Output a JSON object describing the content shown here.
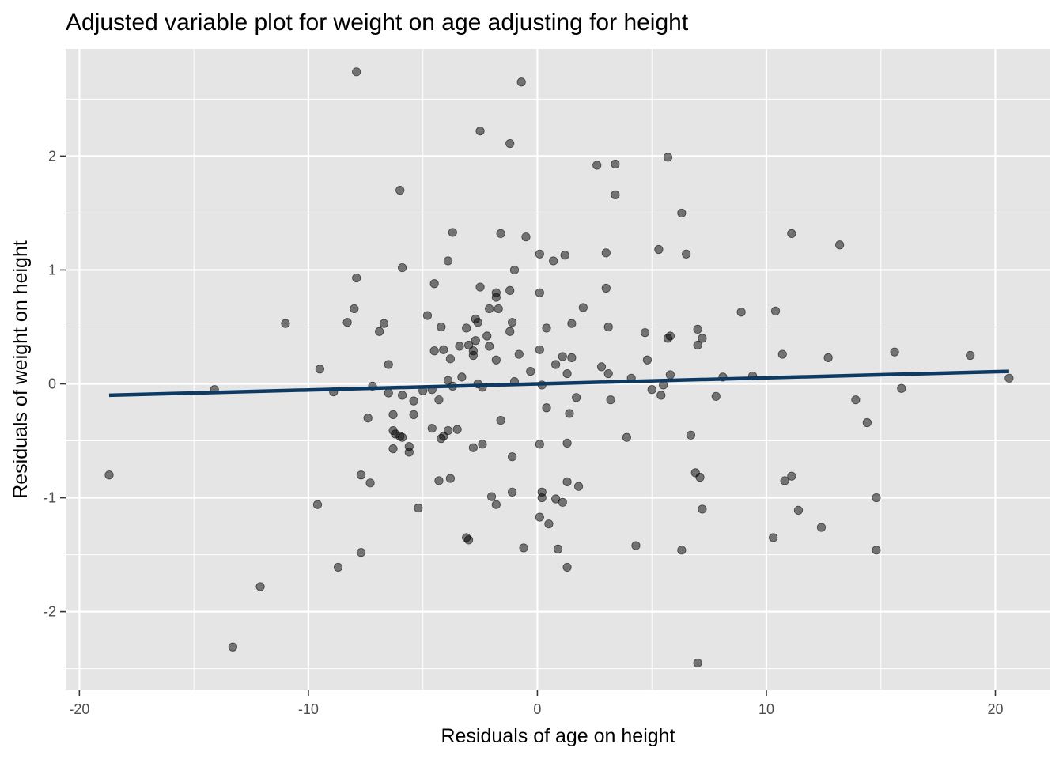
{
  "chart_data": {
    "type": "scatter",
    "title": "Adjusted variable plot for weight on age adjusting for height",
    "xlabel": "Residuals of age on height",
    "ylabel": "Residuals of weight on height",
    "xlim": [
      -20.6,
      22.4
    ],
    "ylim": [
      -2.69,
      2.94
    ],
    "x_ticks": [
      -20,
      -10,
      0,
      10,
      20
    ],
    "x_tick_labels": [
      "-20",
      "-10",
      "0",
      "10",
      "20"
    ],
    "y_ticks": [
      -2,
      -1,
      0,
      1,
      2
    ],
    "y_tick_labels": [
      "-2",
      "-1",
      "0",
      "1",
      "2"
    ],
    "grid": true,
    "colors": {
      "panel": "#e5e5e5",
      "grid": "#ffffff",
      "point": "#000000",
      "fit_line": "#0d3a63"
    },
    "fit_line": {
      "x": [
        -18.7,
        20.6
      ],
      "y": [
        -0.1,
        0.11
      ]
    },
    "points": [
      [
        -18.7,
        -0.8
      ],
      [
        -14.1,
        -0.05
      ],
      [
        -13.3,
        -2.31
      ],
      [
        -12.1,
        -1.78
      ],
      [
        -11.0,
        0.53
      ],
      [
        -9.6,
        -1.06
      ],
      [
        -9.5,
        0.13
      ],
      [
        -8.9,
        -0.07
      ],
      [
        -8.7,
        -1.61
      ],
      [
        -8.3,
        0.54
      ],
      [
        -8.0,
        0.66
      ],
      [
        -7.9,
        0.93
      ],
      [
        -7.9,
        2.74
      ],
      [
        -7.7,
        -0.8
      ],
      [
        -7.7,
        -1.48
      ],
      [
        -7.4,
        -0.3
      ],
      [
        -7.3,
        -0.87
      ],
      [
        -7.2,
        -0.02
      ],
      [
        -6.9,
        0.46
      ],
      [
        -6.7,
        0.53
      ],
      [
        -6.5,
        0.17
      ],
      [
        -6.5,
        -0.08
      ],
      [
        -6.3,
        -0.27
      ],
      [
        -6.3,
        -0.41
      ],
      [
        -6.3,
        -0.57
      ],
      [
        -6.2,
        -0.44
      ],
      [
        -6.0,
        -0.46
      ],
      [
        -6.0,
        1.7
      ],
      [
        -5.9,
        -0.1
      ],
      [
        -5.9,
        -0.47
      ],
      [
        -5.9,
        1.02
      ],
      [
        -5.6,
        -0.55
      ],
      [
        -5.6,
        -0.6
      ],
      [
        -5.4,
        -0.27
      ],
      [
        -5.4,
        -0.15
      ],
      [
        -5.2,
        -1.09
      ],
      [
        -5.0,
        -0.06
      ],
      [
        -4.8,
        0.6
      ],
      [
        -4.6,
        -0.05
      ],
      [
        -4.6,
        -0.39
      ],
      [
        -4.5,
        0.29
      ],
      [
        -4.5,
        0.88
      ],
      [
        -4.3,
        -0.85
      ],
      [
        -4.3,
        -0.14
      ],
      [
        -4.2,
        0.5
      ],
      [
        -4.2,
        -0.48
      ],
      [
        -4.1,
        0.3
      ],
      [
        -4.1,
        -0.46
      ],
      [
        -3.9,
        0.03
      ],
      [
        -3.9,
        1.08
      ],
      [
        -3.9,
        -0.41
      ],
      [
        -3.8,
        -0.83
      ],
      [
        -3.8,
        0.22
      ],
      [
        -3.7,
        1.33
      ],
      [
        -3.7,
        -0.02
      ],
      [
        -3.5,
        -0.4
      ],
      [
        -3.4,
        0.33
      ],
      [
        -3.3,
        0.06
      ],
      [
        -3.1,
        0.49
      ],
      [
        -3.1,
        -1.35
      ],
      [
        -3.0,
        -1.37
      ],
      [
        -3.0,
        0.34
      ],
      [
        -2.8,
        0.29
      ],
      [
        -2.8,
        0.25
      ],
      [
        -2.8,
        -0.56
      ],
      [
        -2.7,
        0.57
      ],
      [
        -2.7,
        0.38
      ],
      [
        -2.6,
        0.0
      ],
      [
        -2.6,
        0.54
      ],
      [
        -2.5,
        0.85
      ],
      [
        -2.5,
        2.22
      ],
      [
        -2.4,
        -0.53
      ],
      [
        -2.4,
        -0.03
      ],
      [
        -2.2,
        0.42
      ],
      [
        -2.1,
        0.33
      ],
      [
        -2.1,
        0.66
      ],
      [
        -2.0,
        -0.99
      ],
      [
        -1.8,
        0.8
      ],
      [
        -1.8,
        0.76
      ],
      [
        -1.8,
        -1.06
      ],
      [
        -1.8,
        0.21
      ],
      [
        -1.7,
        0.66
      ],
      [
        -1.6,
        -0.32
      ],
      [
        -1.6,
        1.32
      ],
      [
        -1.2,
        2.11
      ],
      [
        -1.2,
        0.82
      ],
      [
        -1.2,
        0.46
      ],
      [
        -1.1,
        -0.95
      ],
      [
        -1.1,
        0.54
      ],
      [
        -1.1,
        -0.64
      ],
      [
        -1.0,
        0.02
      ],
      [
        -1.0,
        1.0
      ],
      [
        -0.8,
        0.26
      ],
      [
        -0.7,
        2.65
      ],
      [
        -0.6,
        -1.44
      ],
      [
        -0.5,
        1.29
      ],
      [
        -0.3,
        0.11
      ],
      [
        0.1,
        -1.17
      ],
      [
        0.1,
        1.14
      ],
      [
        0.1,
        0.8
      ],
      [
        0.1,
        0.3
      ],
      [
        0.1,
        -0.53
      ],
      [
        0.2,
        -0.95
      ],
      [
        0.2,
        -1.0
      ],
      [
        0.2,
        -0.01
      ],
      [
        0.4,
        -0.21
      ],
      [
        0.4,
        0.49
      ],
      [
        0.5,
        -1.23
      ],
      [
        0.7,
        1.08
      ],
      [
        0.8,
        -1.01
      ],
      [
        0.8,
        0.17
      ],
      [
        0.9,
        -1.45
      ],
      [
        1.1,
        -1.04
      ],
      [
        1.1,
        0.24
      ],
      [
        1.2,
        1.13
      ],
      [
        1.3,
        0.09
      ],
      [
        1.3,
        -0.86
      ],
      [
        1.3,
        -0.52
      ],
      [
        1.3,
        -1.61
      ],
      [
        1.4,
        -0.26
      ],
      [
        1.5,
        0.53
      ],
      [
        1.5,
        0.23
      ],
      [
        1.7,
        -0.12
      ],
      [
        1.8,
        -0.9
      ],
      [
        2.0,
        0.67
      ],
      [
        2.6,
        1.92
      ],
      [
        2.8,
        0.15
      ],
      [
        3.0,
        0.84
      ],
      [
        3.0,
        1.15
      ],
      [
        3.1,
        0.5
      ],
      [
        3.1,
        0.09
      ],
      [
        3.2,
        -0.14
      ],
      [
        3.4,
        1.66
      ],
      [
        3.4,
        1.93
      ],
      [
        3.9,
        -0.47
      ],
      [
        4.1,
        0.05
      ],
      [
        4.3,
        -1.42
      ],
      [
        4.7,
        0.45
      ],
      [
        4.8,
        0.21
      ],
      [
        5.0,
        -0.05
      ],
      [
        5.3,
        1.18
      ],
      [
        5.4,
        -0.1
      ],
      [
        5.5,
        -0.01
      ],
      [
        5.7,
        0.4
      ],
      [
        5.7,
        1.99
      ],
      [
        5.8,
        0.42
      ],
      [
        5.8,
        0.08
      ],
      [
        6.3,
        1.5
      ],
      [
        6.3,
        -1.46
      ],
      [
        6.5,
        1.14
      ],
      [
        6.7,
        -0.45
      ],
      [
        6.9,
        -0.78
      ],
      [
        7.0,
        0.48
      ],
      [
        7.0,
        0.34
      ],
      [
        7.0,
        -2.45
      ],
      [
        7.1,
        -0.82
      ],
      [
        7.2,
        -1.1
      ],
      [
        7.2,
        0.4
      ],
      [
        7.8,
        -0.11
      ],
      [
        8.1,
        0.06
      ],
      [
        8.9,
        0.63
      ],
      [
        9.4,
        0.07
      ],
      [
        10.3,
        -1.35
      ],
      [
        10.4,
        0.64
      ],
      [
        10.7,
        0.26
      ],
      [
        10.8,
        -0.85
      ],
      [
        11.1,
        -0.81
      ],
      [
        11.1,
        1.32
      ],
      [
        11.4,
        -1.11
      ],
      [
        12.4,
        -1.26
      ],
      [
        12.7,
        0.23
      ],
      [
        13.2,
        1.22
      ],
      [
        13.9,
        -0.14
      ],
      [
        14.4,
        -0.34
      ],
      [
        14.8,
        -1.46
      ],
      [
        14.8,
        -1.0
      ],
      [
        15.6,
        0.28
      ],
      [
        15.9,
        -0.04
      ],
      [
        18.9,
        0.25
      ],
      [
        20.6,
        0.05
      ]
    ]
  }
}
